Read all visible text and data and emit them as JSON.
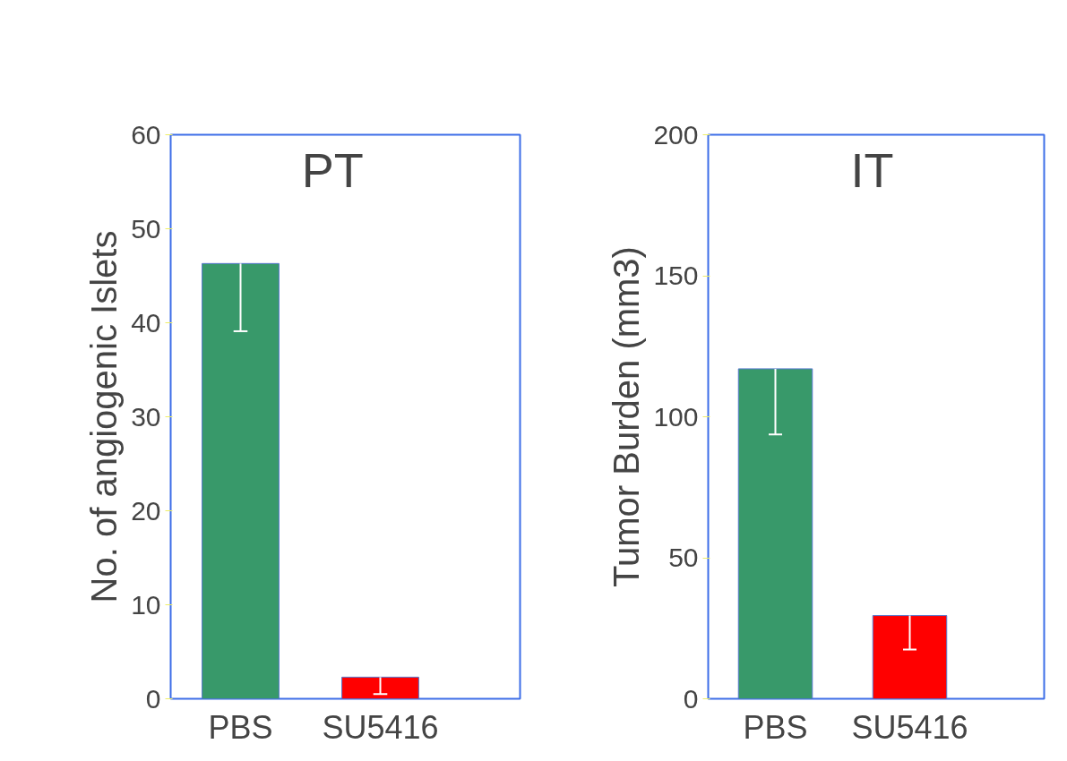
{
  "chart_data": [
    {
      "type": "bar",
      "categories": [
        "PBS",
        "SU5416"
      ],
      "values": [
        46.3,
        2.3
      ],
      "colors": [
        "#38996a",
        "#ff0000"
      ],
      "errors": [
        [
          39.1,
          46.3
        ],
        [
          0.5,
          2.3
        ]
      ],
      "ylim": [
        0,
        60
      ],
      "yticks": [
        0,
        10,
        20,
        30,
        40,
        50,
        60
      ],
      "ylabel": "No. of angiogenic Islets",
      "annotations": [
        "PT"
      ],
      "grid": false
    },
    {
      "type": "bar",
      "categories": [
        "PBS",
        "SU5416"
      ],
      "values": [
        117,
        29.5
      ],
      "colors": [
        "#38996a",
        "#ff0000"
      ],
      "errors": [
        [
          93.7,
          117
        ],
        [
          17.5,
          29.5
        ]
      ],
      "ylim": [
        0,
        200
      ],
      "yticks": [
        0,
        50,
        100,
        150,
        200
      ],
      "ylabel": "Tumor Burden (mm3)",
      "annotations": [
        "IT"
      ],
      "grid": false
    }
  ]
}
